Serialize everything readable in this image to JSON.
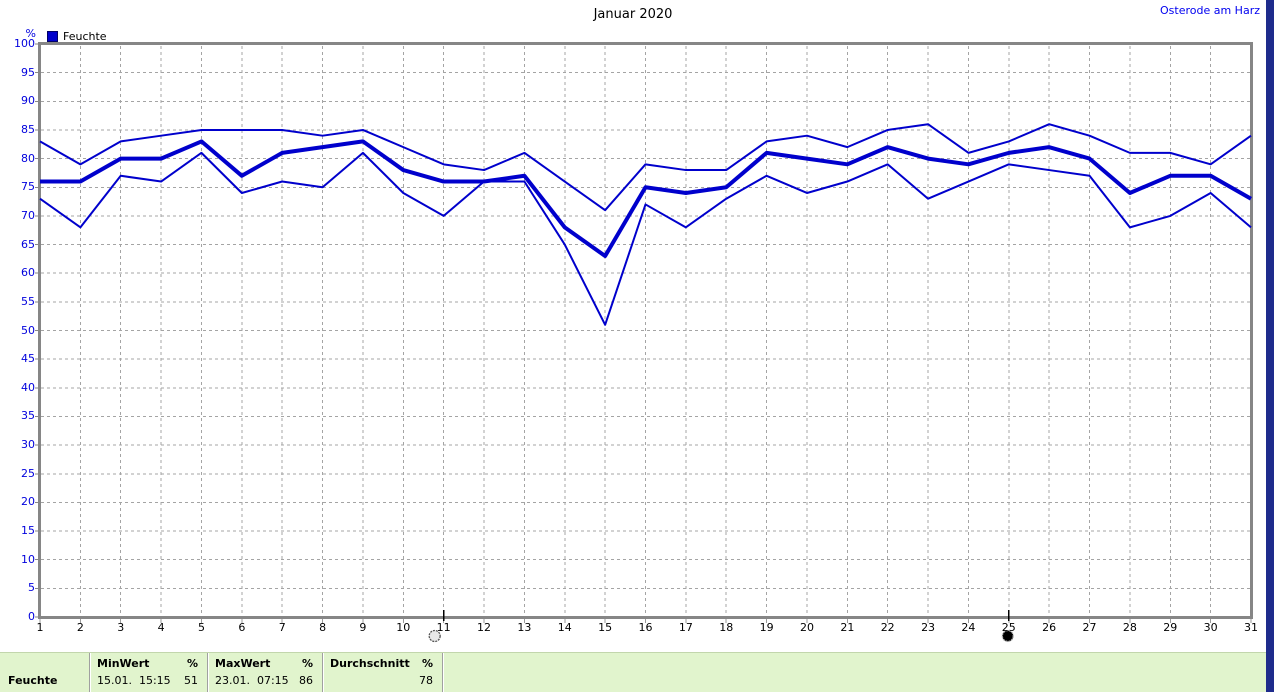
{
  "header": {
    "title": "Januar 2020",
    "station": "Osterode am Harz"
  },
  "legend": {
    "unit": "%",
    "series_label": "Feuchte",
    "swatch_color": "#0000cc"
  },
  "chart_data": {
    "type": "line",
    "title": "Januar 2020",
    "ylabel": "%",
    "ylim": [
      0,
      100
    ],
    "grid": true,
    "line_color": "#0000cc",
    "grid_color": "#a4a4a4",
    "frame_color": "#868686",
    "x": [
      1,
      2,
      3,
      4,
      5,
      6,
      7,
      8,
      9,
      10,
      11,
      12,
      13,
      14,
      15,
      16,
      17,
      18,
      19,
      20,
      21,
      22,
      23,
      24,
      25,
      26,
      27,
      28,
      29,
      30,
      31
    ],
    "y_ticks": [
      100,
      95,
      90,
      85,
      80,
      75,
      70,
      65,
      60,
      55,
      50,
      45,
      40,
      35,
      30,
      25,
      20,
      15,
      10,
      5,
      0
    ],
    "series": [
      {
        "name": "Feuchte Maximum",
        "values": [
          83,
          79,
          83,
          84,
          85,
          85,
          85,
          84,
          85,
          82,
          79,
          78,
          81,
          76,
          71,
          79,
          78,
          78,
          83,
          84,
          82,
          85,
          86,
          81,
          83,
          86,
          84,
          81,
          81,
          79,
          84
        ]
      },
      {
        "name": "Feuchte Durchschnitt",
        "values": [
          76,
          76,
          80,
          80,
          83,
          77,
          81,
          82,
          83,
          78,
          76,
          76,
          77,
          68,
          63,
          75,
          74,
          75,
          81,
          80,
          79,
          82,
          80,
          79,
          81,
          82,
          80,
          74,
          77,
          77,
          73
        ]
      },
      {
        "name": "Feuchte Minimum",
        "values": [
          73,
          68,
          77,
          76,
          81,
          74,
          76,
          75,
          81,
          74,
          70,
          76,
          76,
          65,
          51,
          72,
          68,
          73,
          77,
          74,
          76,
          79,
          73,
          76,
          79,
          78,
          77,
          68,
          70,
          74,
          68
        ]
      }
    ],
    "markers": [
      {
        "day": 11,
        "symbol": "full-moon"
      },
      {
        "day": 25,
        "symbol": "new-moon"
      }
    ]
  },
  "table": {
    "row_label": "Feuchte",
    "columns": [
      {
        "header": "MinWert",
        "unit": "%",
        "datetime": "15.01.  15:15",
        "value": "51"
      },
      {
        "header": "MaxWert",
        "unit": "%",
        "datetime": "23.01.  07:15",
        "value": "86"
      },
      {
        "header": "Durchschnitt",
        "unit": "%",
        "datetime": "",
        "value": "78"
      }
    ]
  }
}
